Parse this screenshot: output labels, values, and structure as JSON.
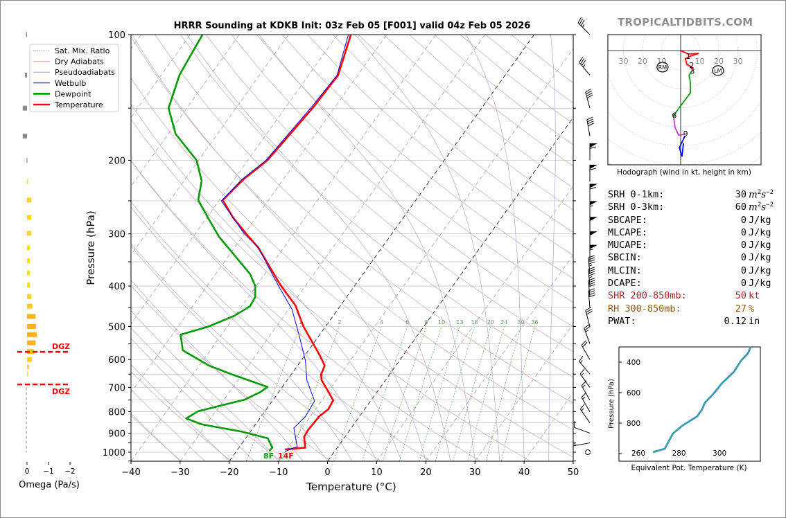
{
  "watermark": "TROPICALTIDBITS.COM",
  "stats": [
    {
      "label": "SRH 0-1km:",
      "value": "30",
      "unit_base1": "m",
      "unit_exp1": "2",
      "unit_base2": "s",
      "unit_exp2": "−2"
    },
    {
      "label": "SRH 0-3km:",
      "value": "60",
      "unit_base1": "m",
      "unit_exp1": "2",
      "unit_base2": "s",
      "unit_exp2": "−2"
    },
    {
      "label": "SBCAPE:",
      "value": "0",
      "unit": "J/kg"
    },
    {
      "label": "MLCAPE:",
      "value": "0",
      "unit": "J/kg"
    },
    {
      "label": "MUCAPE:",
      "value": "0",
      "unit": "J/kg"
    },
    {
      "label": "SBCIN:",
      "value": "0",
      "unit": "J/kg"
    },
    {
      "label": "MLCIN:",
      "value": "0",
      "unit": "J/kg"
    },
    {
      "label": "DCAPE:",
      "value": "0",
      "unit": "J/kg"
    },
    {
      "label": "SHR 200-850mb:",
      "value": "50",
      "unit": "kt",
      "color": "#a52a2a"
    },
    {
      "label": "RH 300-850mb:",
      "value": "27",
      "unit": "%",
      "color": "#8b5a14"
    },
    {
      "label": "PWAT:",
      "value": "0.12",
      "unit": "in"
    }
  ],
  "chart_data": [
    {
      "type": "line",
      "name": "skewt",
      "title": "HRRR Sounding at KDKB Init: 03z Feb 05 [F001] valid 04z Feb 05 2026",
      "xlabel": "Temperature (°C)",
      "ylabel": "Pressure (hPa)",
      "xlim": [
        -40,
        50
      ],
      "ylim": [
        1050,
        100
      ],
      "xticks": [
        "−40",
        "−30",
        "−20",
        "−10",
        "0",
        "10",
        "20",
        "30",
        "40",
        "50"
      ],
      "xtick_values": [
        -40,
        -30,
        -20,
        -10,
        0,
        10,
        20,
        30,
        40,
        50
      ],
      "yticks": [
        "100",
        "200",
        "300",
        "400",
        "500",
        "600",
        "700",
        "800",
        "900",
        "1000"
      ],
      "ytick_values": [
        100,
        200,
        300,
        400,
        500,
        600,
        700,
        800,
        900,
        1000
      ],
      "legend": {
        "placement": "upper-left",
        "entries": [
          {
            "label": "Sat. Mix. Ratio",
            "color": "#3a9a3a",
            "style": "dotted"
          },
          {
            "label": "Dry Adiabats",
            "color": "#d4a0a0",
            "style": "solid"
          },
          {
            "label": "Pseudoadiabats",
            "color": "#a0a0d0",
            "style": "solid"
          },
          {
            "label": "Wetbulb",
            "color": "#0000ff",
            "style": "solid"
          },
          {
            "label": "Dewpoint",
            "color": "#009900",
            "style": "thick"
          },
          {
            "label": "Temperature",
            "color": "#ff0000",
            "style": "thick"
          }
        ]
      },
      "mixing_ratio_labels": [
        "1",
        "2",
        "4",
        "6",
        "8",
        "10",
        "13",
        "16",
        "20",
        "24",
        "30",
        "36"
      ],
      "mixing_ratio_values": [
        1,
        2,
        4,
        6,
        8,
        10,
        13,
        16,
        20,
        24,
        30,
        36
      ],
      "series": [
        {
          "name": "Temperature",
          "color": "#ff0000",
          "points": [
            [
              985,
              -10.4
            ],
            [
              975,
              -6.5
            ],
            [
              919,
              -8.3
            ],
            [
              885,
              -8.5
            ],
            [
              820,
              -8.2
            ],
            [
              789,
              -7.4
            ],
            [
              751,
              -7.7
            ],
            [
              672,
              -13
            ],
            [
              652,
              -13.9
            ],
            [
              620,
              -14.5
            ],
            [
              586,
              -17
            ],
            [
              500,
              -24.5
            ],
            [
              445,
              -29.2
            ],
            [
              397,
              -35.3
            ],
            [
              324,
              -45.1
            ],
            [
              300,
              -49.6
            ],
            [
              274,
              -54.7
            ],
            [
              249,
              -59.3
            ],
            [
              222,
              -58.1
            ],
            [
              200,
              -56
            ],
            [
              150,
              -54.4
            ],
            [
              125,
              -54
            ],
            [
              100,
              -57.3
            ]
          ]
        },
        {
          "name": "Dewpoint",
          "color": "#009900",
          "points": [
            [
              992,
              -13.4
            ],
            [
              975,
              -13.2
            ],
            [
              926,
              -15.5
            ],
            [
              892,
              -21.9
            ],
            [
              858,
              -30.9
            ],
            [
              830,
              -35
            ],
            [
              798,
              -33.6
            ],
            [
              748,
              -25.8
            ],
            [
              717,
              -23.7
            ],
            [
              698,
              -23
            ],
            [
              652,
              -31.9
            ],
            [
              620,
              -38.1
            ],
            [
              570,
              -45.6
            ],
            [
              523,
              -48.3
            ],
            [
              500,
              -43.8
            ],
            [
              471,
              -40.1
            ],
            [
              447,
              -38.3
            ],
            [
              425,
              -38.6
            ],
            [
              400,
              -40.2
            ],
            [
              375,
              -42.9
            ],
            [
              334,
              -49.5
            ],
            [
              305,
              -54.7
            ],
            [
              276,
              -59.5
            ],
            [
              249,
              -64.3
            ],
            [
              224,
              -66.4
            ],
            [
              200,
              -70.4
            ],
            [
              173,
              -78.5
            ],
            [
              150,
              -83.7
            ],
            [
              125,
              -86.3
            ],
            [
              100,
              -87.5
            ]
          ]
        },
        {
          "name": "Wetbulb",
          "color": "#0000ff",
          "points": [
            [
              996,
              -10.1
            ],
            [
              970,
              -8.3
            ],
            [
              875,
              -11.7
            ],
            [
              820,
              -11
            ],
            [
              754,
              -11.4
            ],
            [
              672,
              -16
            ],
            [
              604,
              -19.1
            ],
            [
              519,
              -24.5
            ],
            [
              454,
              -29.4
            ],
            [
              397,
              -35.8
            ],
            [
              324,
              -45.1
            ],
            [
              300,
              -50
            ],
            [
              250,
              -59.5
            ],
            [
              222,
              -58.4
            ],
            [
              200,
              -56.3
            ],
            [
              150,
              -54.8
            ],
            [
              125,
              -54.2
            ],
            [
              100,
              -57.8
            ]
          ]
        }
      ],
      "surface_labels": {
        "dewpoint": "8F",
        "temperature": "14F"
      },
      "wind_barbs": [
        {
          "p": 100,
          "dir": 315,
          "kt": 35
        },
        {
          "p": 125,
          "dir": 320,
          "kt": 35
        },
        {
          "p": 150,
          "dir": 345,
          "kt": 40
        },
        {
          "p": 175,
          "dir": 350,
          "kt": 40
        },
        {
          "p": 200,
          "dir": 0,
          "kt": 60
        },
        {
          "p": 225,
          "dir": 0,
          "kt": 60
        },
        {
          "p": 250,
          "dir": 0,
          "kt": 60
        },
        {
          "p": 275,
          "dir": 0,
          "kt": 55
        },
        {
          "p": 300,
          "dir": 0,
          "kt": 50
        },
        {
          "p": 325,
          "dir": 0,
          "kt": 50
        },
        {
          "p": 350,
          "dir": 0,
          "kt": 55
        },
        {
          "p": 375,
          "dir": 355,
          "kt": 45
        },
        {
          "p": 400,
          "dir": 355,
          "kt": 45
        },
        {
          "p": 425,
          "dir": 355,
          "kt": 40
        },
        {
          "p": 450,
          "dir": 355,
          "kt": 40
        },
        {
          "p": 500,
          "dir": 345,
          "kt": 30
        },
        {
          "p": 550,
          "dir": 340,
          "kt": 25
        },
        {
          "p": 600,
          "dir": 330,
          "kt": 20
        },
        {
          "p": 650,
          "dir": 320,
          "kt": 15
        },
        {
          "p": 700,
          "dir": 325,
          "kt": 15
        },
        {
          "p": 750,
          "dir": 330,
          "kt": 15
        },
        {
          "p": 800,
          "dir": 330,
          "kt": 15
        },
        {
          "p": 850,
          "dir": 325,
          "kt": 15
        },
        {
          "p": 900,
          "dir": 290,
          "kt": 10
        },
        {
          "p": 950,
          "dir": 260,
          "kt": 5
        },
        {
          "p": 1000,
          "dir": 0,
          "kt": 0
        }
      ]
    },
    {
      "type": "line",
      "name": "hodograph",
      "xlabel": "Hodograph (wind in kt, height in km)",
      "ring_labels": [
        "30",
        "20",
        "10",
        "10",
        "20",
        "30"
      ],
      "ring_label_values": [
        -30,
        -20,
        -10,
        10,
        20,
        30
      ],
      "segments": [
        {
          "name": "0-3km",
          "color": "#ff0000",
          "points": [
            [
              0,
              0
            ],
            [
              4,
              -1.8
            ],
            [
              9.5,
              -1.5
            ],
            [
              5,
              -2.9
            ],
            [
              2.5,
              -4.4
            ],
            [
              3.3,
              -7.3
            ],
            [
              5.8,
              -8.7
            ],
            [
              6.2,
              -10.2
            ]
          ]
        },
        {
          "name": "3-6km",
          "color": "#109010",
          "points": [
            [
              6.2,
              -10.2
            ],
            [
              4.4,
              -13.1
            ],
            [
              5.1,
              -16.4
            ],
            [
              5.1,
              -22.2
            ],
            [
              -2.2,
              -32
            ],
            [
              -3.6,
              -35
            ]
          ]
        },
        {
          "name": "6-9km",
          "color": "#c040c0",
          "points": [
            [
              -3.6,
              -35.6
            ],
            [
              -2.9,
              -40.4
            ],
            [
              -1.1,
              -44.4
            ],
            [
              2.2,
              -44
            ]
          ]
        },
        {
          "name": "9km+",
          "color": "#0000ff",
          "points": [
            [
              2.2,
              -45
            ],
            [
              -0.7,
              -51
            ],
            [
              0.7,
              -55.6
            ],
            [
              1.5,
              -48.7
            ]
          ]
        }
      ],
      "height_labels": [
        {
          "text": "1",
          "u": 4,
          "v": -2.9
        },
        {
          "text": "2",
          "u": 5.8,
          "v": -7.6
        },
        {
          "text": "3",
          "u": 6.2,
          "v": -10.8
        },
        {
          "text": "6",
          "u": -3.3,
          "v": -34
        },
        {
          "text": "9",
          "u": 2.6,
          "v": -43.6
        }
      ],
      "storm_motion": [
        {
          "text": "RM",
          "u": -9.5,
          "v": -8.7
        },
        {
          "text": "LM",
          "u": 19.6,
          "v": -10.5
        }
      ]
    },
    {
      "type": "line",
      "name": "theta_e",
      "xlabel": "Equivalent Pot. Temperature (K)",
      "ylabel": "Pressure (hPa)",
      "xticks": [
        "260",
        "280",
        "300"
      ],
      "xtick_values": [
        260,
        280,
        300
      ],
      "yticks": [
        "400",
        "600",
        "800"
      ],
      "ytick_values": [
        400,
        600,
        800
      ],
      "xlim": [
        250.5,
        320
      ],
      "ylim": [
        1050,
        300
      ],
      "color": "#3a9ab0",
      "points": [
        [
          267.2,
          991
        ],
        [
          273,
          968
        ],
        [
          277,
          868
        ],
        [
          281.5,
          818
        ],
        [
          289,
          755
        ],
        [
          291.4,
          709
        ],
        [
          292.8,
          664
        ],
        [
          296.9,
          609
        ],
        [
          301,
          541
        ],
        [
          307,
          464
        ],
        [
          310.5,
          391
        ],
        [
          314,
          341
        ],
        [
          315.3,
          300
        ]
      ]
    },
    {
      "type": "bar",
      "name": "omega",
      "xlabel": "Omega (Pa/s)",
      "xticks": [
        "0",
        "−1",
        "−2"
      ],
      "xtick_values": [
        0,
        -1,
        -2
      ],
      "dgz_label": "DGZ",
      "dgz_bounds": [
        575,
        688
      ],
      "bars": [
        {
          "p": 100,
          "w": 0.05,
          "color": "#8c8c8c"
        },
        {
          "p": 125,
          "w": 0.1,
          "color": "#8c8c8c"
        },
        {
          "p": 150,
          "w": 0.2,
          "color": "#8c8c8c"
        },
        {
          "p": 175,
          "w": 0.2,
          "color": "#8c8c8c"
        },
        {
          "p": 200,
          "w": 0.02,
          "color": "#8c8c8c"
        },
        {
          "p": 225,
          "w": -0.05,
          "color": "#f5e21c"
        },
        {
          "p": 249,
          "w": -0.2,
          "color": "#fbd41c"
        },
        {
          "p": 274,
          "w": -0.2,
          "color": "#fbd41c"
        },
        {
          "p": 299,
          "w": -0.2,
          "color": "#fbd41c"
        },
        {
          "p": 324,
          "w": -0.13,
          "color": "#f8dd1c"
        },
        {
          "p": 348,
          "w": -0.13,
          "color": "#f8dd1c"
        },
        {
          "p": 372,
          "w": -0.13,
          "color": "#f8dd1c"
        },
        {
          "p": 398,
          "w": -0.13,
          "color": "#f8dd1c"
        },
        {
          "p": 424,
          "w": -0.2,
          "color": "#fbd41c"
        },
        {
          "p": 447,
          "w": -0.25,
          "color": "#fbca22"
        },
        {
          "p": 473,
          "w": -0.4,
          "color": "#fbb424"
        },
        {
          "p": 500,
          "w": -0.42,
          "color": "#fbb424"
        },
        {
          "p": 523,
          "w": -0.45,
          "color": "#fbb024"
        },
        {
          "p": 547,
          "w": -0.4,
          "color": "#fbb424"
        },
        {
          "p": 574,
          "w": -0.33,
          "color": "#fbc024"
        },
        {
          "p": 600,
          "w": -0.23,
          "color": "#fbd022"
        },
        {
          "p": 625,
          "w": -0.1,
          "color": "#f8df1c"
        },
        {
          "p": 649,
          "w": -0.05,
          "color": "#f5e51c"
        }
      ]
    }
  ]
}
